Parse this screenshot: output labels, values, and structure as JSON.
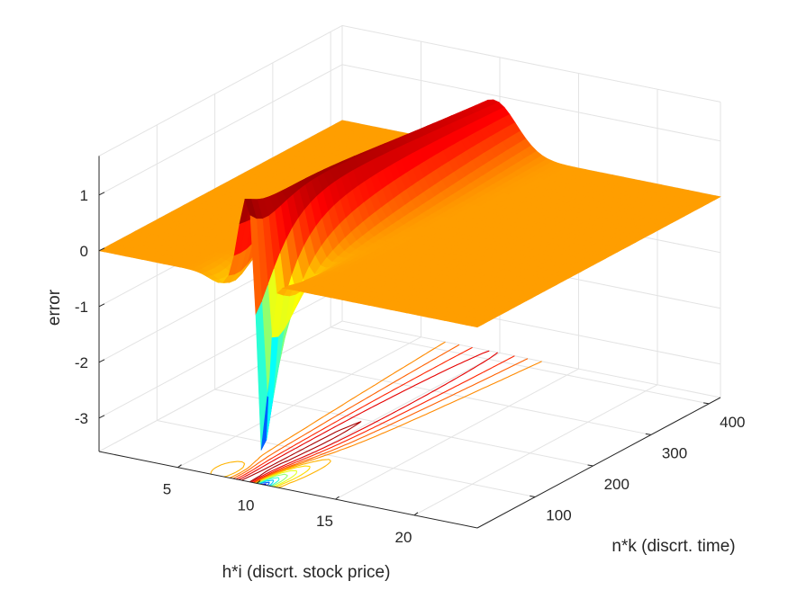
{
  "chart_data": {
    "type": "surface3d",
    "title": "",
    "xlabel": "h*i (discrt. stock price)",
    "ylabel": "n*k (discrt. time)",
    "zlabel": "error",
    "xlim": [
      0,
      24
    ],
    "ylim": [
      0,
      420
    ],
    "zlim": [
      -3.6,
      1.7
    ],
    "x_ticks": [
      5,
      10,
      15,
      20
    ],
    "y_ticks": [
      100,
      200,
      300,
      400
    ],
    "z_ticks": [
      -3,
      -2,
      -1,
      0,
      1
    ],
    "grid": true,
    "colormap": "jet",
    "contours_on_floor": true,
    "features": {
      "plateau_value": 0,
      "ridge_peak": {
        "x": 9.4,
        "y": 40,
        "z": 1.4
      },
      "ridge_end": {
        "x": 9.6,
        "y": 330,
        "z": 0.5
      },
      "trough_min": {
        "x": 10.4,
        "y": 0,
        "z": -3.6
      },
      "trough_recovery": {
        "x": 10.6,
        "y": 300,
        "z": -0.1
      }
    }
  }
}
